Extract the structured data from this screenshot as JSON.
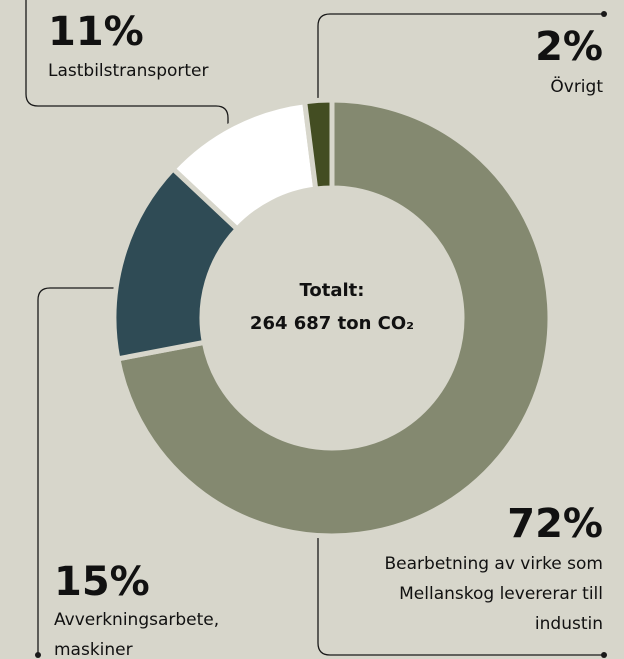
{
  "chart_data": {
    "type": "donut",
    "categories": [
      "Bearbetning av virke som Mellanskog levererar till industin",
      "Avverkningsarbete, maskiner",
      "Lastbilstransporter",
      "Övrigt"
    ],
    "values": [
      72,
      15,
      11,
      2
    ],
    "value_labels": [
      "72%",
      "15%",
      "11%",
      "2%"
    ],
    "colors": [
      "#848970",
      "#2f4b55",
      "#ffffff",
      "#434d22"
    ],
    "center_label": [
      "Totalt:",
      "264 687 ton CO₂"
    ]
  }
}
